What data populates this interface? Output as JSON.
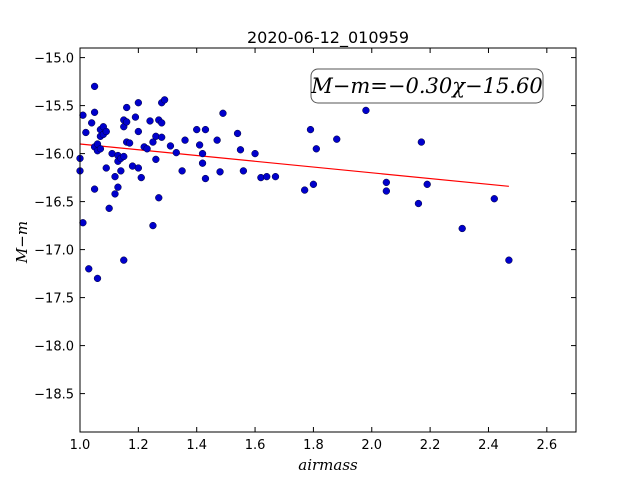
{
  "chart_data": {
    "type": "scatter",
    "title": "2020-06-12_010959",
    "xlabel": "airmass",
    "ylabel": "M−m",
    "xlim": [
      1.0,
      2.7
    ],
    "ylim": [
      -14.9,
      -18.9
    ],
    "y_inverted": true,
    "grid": false,
    "x_ticks": [
      "1.0",
      "1.2",
      "1.4",
      "1.6",
      "1.8",
      "2.0",
      "2.2",
      "2.4",
      "2.6"
    ],
    "y_ticks": [
      "−15.0",
      "−15.5",
      "−16.0",
      "−16.5",
      "−17.0",
      "−17.5",
      "−18.0",
      "−18.5"
    ],
    "annotation": "M−m=−0.30χ−15.60",
    "fit": {
      "slope": -0.3,
      "intercept": -15.6,
      "x_range": [
        1.0,
        2.47
      ],
      "color": "#ff0000"
    },
    "point_color": "#0000cc",
    "x": [
      1.0,
      1.0,
      1.01,
      1.01,
      1.02,
      1.03,
      1.04,
      1.05,
      1.05,
      1.05,
      1.05,
      1.06,
      1.06,
      1.06,
      1.07,
      1.07,
      1.07,
      1.08,
      1.08,
      1.09,
      1.09,
      1.1,
      1.11,
      1.12,
      1.12,
      1.13,
      1.13,
      1.13,
      1.14,
      1.14,
      1.15,
      1.15,
      1.15,
      1.15,
      1.16,
      1.16,
      1.16,
      1.17,
      1.18,
      1.19,
      1.2,
      1.2,
      1.2,
      1.21,
      1.22,
      1.23,
      1.24,
      1.25,
      1.25,
      1.26,
      1.26,
      1.27,
      1.27,
      1.28,
      1.28,
      1.28,
      1.29,
      1.31,
      1.33,
      1.35,
      1.36,
      1.4,
      1.41,
      1.42,
      1.42,
      1.43,
      1.43,
      1.47,
      1.48,
      1.49,
      1.54,
      1.55,
      1.56,
      1.6,
      1.62,
      1.64,
      1.67,
      1.77,
      1.79,
      1.8,
      1.81,
      1.88,
      1.98,
      2.05,
      2.05,
      2.16,
      2.17,
      2.19,
      2.31,
      2.42,
      2.47
    ],
    "y": [
      -16.05,
      -16.18,
      -15.6,
      -16.72,
      -15.78,
      -17.2,
      -15.68,
      -15.57,
      -15.3,
      -15.93,
      -16.37,
      -15.9,
      -15.97,
      -17.3,
      -15.75,
      -15.82,
      -15.95,
      -15.72,
      -15.8,
      -15.77,
      -16.15,
      -16.57,
      -16.0,
      -16.24,
      -16.42,
      -16.02,
      -16.08,
      -16.35,
      -16.05,
      -16.18,
      -15.65,
      -15.72,
      -16.03,
      -17.11,
      -15.52,
      -15.67,
      -15.88,
      -15.89,
      -16.13,
      -15.62,
      -15.47,
      -15.77,
      -16.15,
      -16.25,
      -15.93,
      -15.95,
      -15.66,
      -15.88,
      -16.75,
      -15.82,
      -16.06,
      -15.65,
      -16.46,
      -15.68,
      -15.83,
      -15.47,
      -15.44,
      -15.92,
      -15.99,
      -16.18,
      -15.86,
      -15.75,
      -15.91,
      -16.1,
      -16.0,
      -16.26,
      -15.75,
      -15.86,
      -16.19,
      -15.58,
      -15.79,
      -15.96,
      -16.18,
      -16.0,
      -16.25,
      -16.24,
      -16.24,
      -16.38,
      -15.75,
      -16.32,
      -15.95,
      -15.85,
      -15.55,
      -16.3,
      -16.39,
      -16.52,
      -15.88,
      -16.32,
      -16.78,
      -16.47,
      -17.11
    ]
  }
}
